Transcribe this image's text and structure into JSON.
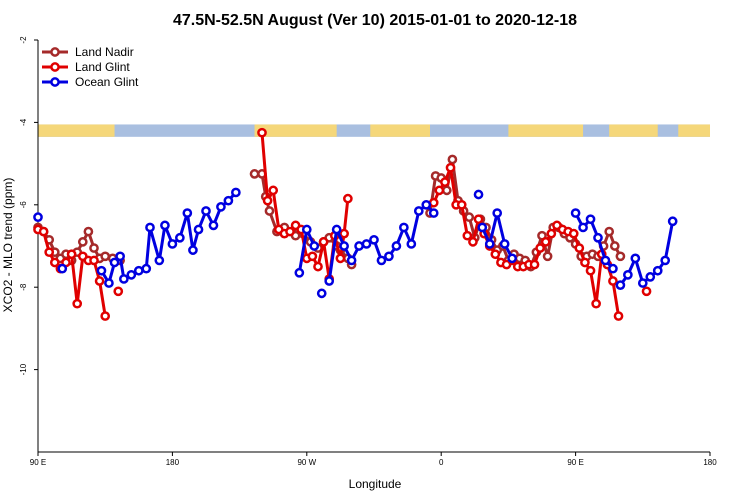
{
  "chart_data": {
    "type": "line",
    "title": "47.5N-52.5N August (Ver 10)   2015-01-01 to 2020-12-18",
    "xlabel": "Longitude",
    "ylabel": "XCO2 - MLO trend (ppm)",
    "xlim": [
      90,
      450
    ],
    "ylim": [
      -12,
      -2
    ],
    "x_ticks": [
      {
        "value": 90,
        "label": "90 E"
      },
      {
        "value": 162,
        "label": "180"
      },
      {
        "value": 234,
        "label": "90 W"
      },
      {
        "value": 306,
        "label": "0"
      },
      {
        "value": 378,
        "label": "90 E"
      },
      {
        "value": 450,
        "label": "180"
      }
    ],
    "y_ticks": [
      {
        "value": -2,
        "label": "-2"
      },
      {
        "value": -4,
        "label": "-4"
      },
      {
        "value": -6,
        "label": "-6"
      },
      {
        "value": -8,
        "label": "-8"
      },
      {
        "value": -10,
        "label": "-10"
      }
    ],
    "legend_position": "top-left",
    "land_strip": {
      "y_range": [
        -4.05,
        -4.35
      ],
      "land_color": "#f5d77a",
      "ocean_color": "#a9bfe0",
      "land_segments": [
        [
          90,
          131
        ],
        [
          206,
          250
        ],
        [
          268,
          300
        ],
        [
          342,
          382
        ],
        [
          396,
          422
        ],
        [
          433,
          450
        ]
      ]
    },
    "series": [
      {
        "name": "Land Nadir",
        "color": "#a52a2a",
        "segments": [
          [
            [
              90,
              -6.55
            ],
            [
              93,
              -6.65
            ],
            [
              96,
              -6.85
            ],
            [
              99,
              -7.15
            ],
            [
              102,
              -7.3
            ],
            [
              105,
              -7.2
            ],
            [
              108,
              -7.35
            ],
            [
              111,
              -7.15
            ],
            [
              114,
              -6.9
            ],
            [
              117,
              -6.65
            ],
            [
              120,
              -7.05
            ],
            [
              123,
              -7.3
            ],
            [
              126,
              -7.25
            ],
            [
              130,
              -7.3
            ],
            [
              134,
              -7.35
            ]
          ],
          [
            [
              206,
              -5.25
            ],
            [
              210,
              -5.25
            ],
            [
              212,
              -5.8
            ],
            [
              214,
              -6.15
            ],
            [
              218,
              -6.65
            ],
            [
              222,
              -6.55
            ],
            [
              226,
              -6.65
            ],
            [
              228,
              -6.75
            ],
            [
              232,
              -6.7
            ],
            [
              236,
              -6.9
            ],
            [
              240,
              -7.05
            ],
            [
              243,
              -6.9
            ],
            [
              246,
              -6.8
            ],
            [
              250,
              -7.0
            ],
            [
              252,
              -7.1
            ],
            [
              256,
              -7.3
            ],
            [
              258,
              -7.45
            ]
          ],
          [
            [
              300,
              -6.2
            ],
            [
              303,
              -5.3
            ],
            [
              306,
              -5.35
            ],
            [
              309,
              -5.65
            ],
            [
              312,
              -4.9
            ],
            [
              315,
              -5.9
            ],
            [
              318,
              -6.15
            ],
            [
              321,
              -6.3
            ],
            [
              324,
              -6.8
            ],
            [
              327,
              -6.35
            ],
            [
              330,
              -6.55
            ],
            [
              333,
              -6.85
            ],
            [
              336,
              -7.1
            ],
            [
              339,
              -7.0
            ],
            [
              342,
              -7.35
            ],
            [
              345,
              -7.2
            ],
            [
              348,
              -7.3
            ],
            [
              351,
              -7.35
            ],
            [
              354,
              -7.5
            ],
            [
              357,
              -7.15
            ],
            [
              360,
              -6.75
            ],
            [
              363,
              -7.25
            ],
            [
              366,
              -6.55
            ],
            [
              369,
              -6.55
            ],
            [
              372,
              -6.7
            ],
            [
              375,
              -6.8
            ],
            [
              378,
              -6.95
            ],
            [
              381,
              -7.25
            ],
            [
              384,
              -7.25
            ],
            [
              387,
              -7.2
            ],
            [
              390,
              -7.25
            ],
            [
              393,
              -7.0
            ],
            [
              396,
              -6.65
            ],
            [
              399,
              -7.0
            ],
            [
              402,
              -7.25
            ]
          ]
        ]
      },
      {
        "name": "Land Glint",
        "color": "#e00000",
        "segments": [
          [
            [
              90,
              -6.6
            ],
            [
              93,
              -6.65
            ],
            [
              96,
              -7.15
            ],
            [
              99,
              -7.4
            ],
            [
              102,
              -7.55
            ],
            [
              105,
              -7.4
            ],
            [
              108,
              -7.2
            ],
            [
              111,
              -8.4
            ],
            [
              114,
              -7.25
            ],
            [
              117,
              -7.35
            ],
            [
              120,
              -7.35
            ],
            [
              123,
              -7.85
            ],
            [
              126,
              -8.7
            ]
          ],
          [
            [
              133,
              -8.1
            ]
          ],
          [
            [
              210,
              -4.25
            ],
            [
              213,
              -5.9
            ],
            [
              216,
              -5.65
            ],
            [
              219,
              -6.6
            ],
            [
              222,
              -6.7
            ],
            [
              225,
              -6.65
            ],
            [
              228,
              -6.5
            ],
            [
              231,
              -6.6
            ],
            [
              234,
              -7.3
            ],
            [
              237,
              -7.25
            ],
            [
              240,
              -7.5
            ],
            [
              243,
              -6.9
            ],
            [
              246,
              -7.8
            ],
            [
              249,
              -6.75
            ],
            [
              252,
              -7.3
            ],
            [
              254,
              -6.7
            ],
            [
              256,
              -5.85
            ]
          ],
          [
            [
              302,
              -5.95
            ],
            [
              305,
              -5.65
            ],
            [
              308,
              -5.45
            ],
            [
              311,
              -5.1
            ],
            [
              314,
              -6.0
            ],
            [
              317,
              -6.0
            ],
            [
              320,
              -6.75
            ],
            [
              323,
              -6.9
            ],
            [
              326,
              -6.35
            ],
            [
              329,
              -6.7
            ],
            [
              332,
              -7.0
            ],
            [
              335,
              -7.2
            ],
            [
              338,
              -7.4
            ],
            [
              341,
              -7.45
            ],
            [
              344,
              -7.35
            ],
            [
              347,
              -7.5
            ],
            [
              350,
              -7.5
            ],
            [
              353,
              -7.45
            ],
            [
              356,
              -7.45
            ],
            [
              359,
              -7.05
            ],
            [
              362,
              -6.9
            ],
            [
              365,
              -6.7
            ],
            [
              368,
              -6.5
            ],
            [
              371,
              -6.6
            ],
            [
              374,
              -6.65
            ],
            [
              377,
              -6.7
            ],
            [
              380,
              -7.05
            ],
            [
              383,
              -7.4
            ],
            [
              386,
              -7.6
            ],
            [
              389,
              -8.4
            ],
            [
              392,
              -7.2
            ],
            [
              395,
              -7.45
            ],
            [
              398,
              -7.85
            ],
            [
              401,
              -8.7
            ]
          ],
          [
            [
              416,
              -8.1
            ]
          ]
        ]
      },
      {
        "name": "Ocean Glint",
        "color": "#0000e0",
        "segments": [
          [
            [
              90,
              -6.3
            ]
          ],
          [
            [
              103,
              -7.55
            ]
          ],
          [
            [
              124,
              -7.6
            ],
            [
              128,
              -7.9
            ],
            [
              131,
              -7.4
            ],
            [
              134,
              -7.25
            ],
            [
              136,
              -7.8
            ],
            [
              140,
              -7.7
            ],
            [
              144,
              -7.6
            ],
            [
              148,
              -7.55
            ],
            [
              150,
              -6.55
            ],
            [
              155,
              -7.35
            ],
            [
              158,
              -6.5
            ],
            [
              162,
              -6.95
            ],
            [
              166,
              -6.8
            ],
            [
              170,
              -6.2
            ],
            [
              173,
              -7.1
            ],
            [
              176,
              -6.6
            ],
            [
              180,
              -6.15
            ],
            [
              184,
              -6.5
            ],
            [
              188,
              -6.05
            ],
            [
              192,
              -5.9
            ],
            [
              196,
              -5.7
            ]
          ],
          [
            [
              230,
              -7.65
            ],
            [
              234,
              -6.6
            ],
            [
              238,
              -7.0
            ]
          ],
          [
            [
              242,
              -8.15
            ]
          ],
          [
            [
              246,
              -7.85
            ],
            [
              250,
              -6.6
            ],
            [
              254,
              -7.0
            ],
            [
              258,
              -7.35
            ],
            [
              262,
              -7.0
            ],
            [
              266,
              -6.95
            ],
            [
              270,
              -6.85
            ],
            [
              274,
              -7.35
            ],
            [
              278,
              -7.25
            ],
            [
              282,
              -7.0
            ],
            [
              286,
              -6.55
            ],
            [
              290,
              -6.95
            ],
            [
              294,
              -6.15
            ],
            [
              298,
              -6.0
            ],
            [
              302,
              -6.2
            ]
          ],
          [
            [
              326,
              -5.75
            ]
          ],
          [
            [
              328,
              -6.55
            ],
            [
              332,
              -6.95
            ],
            [
              336,
              -6.2
            ],
            [
              340,
              -6.95
            ],
            [
              344,
              -7.3
            ]
          ],
          [
            [
              378,
              -6.2
            ],
            [
              382,
              -6.55
            ],
            [
              386,
              -6.35
            ],
            [
              390,
              -6.8
            ],
            [
              394,
              -7.35
            ],
            [
              398,
              -7.55
            ]
          ],
          [
            [
              402,
              -7.95
            ],
            [
              406,
              -7.7
            ],
            [
              410,
              -7.3
            ],
            [
              414,
              -7.9
            ],
            [
              418,
              -7.75
            ],
            [
              422,
              -7.6
            ],
            [
              426,
              -7.35
            ],
            [
              430,
              -6.4
            ]
          ]
        ]
      }
    ]
  }
}
